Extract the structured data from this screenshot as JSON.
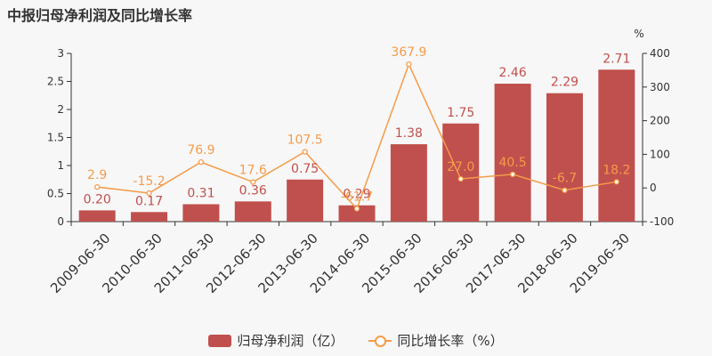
{
  "title": "中报归母净利润及同比增长率",
  "chart_data": {
    "type": "bar",
    "categories": [
      "2009-06-30",
      "2010-06-30",
      "2011-06-30",
      "2012-06-30",
      "2013-06-30",
      "2014-06-30",
      "2015-06-30",
      "2016-06-30",
      "2017-06-30",
      "2018-06-30",
      "2019-06-30"
    ],
    "series": [
      {
        "name": "归母净利润（亿）",
        "type": "bar",
        "axis": "left",
        "color": "#c0504d",
        "values": [
          0.2,
          0.17,
          0.31,
          0.36,
          0.75,
          0.29,
          1.38,
          1.75,
          2.46,
          2.29,
          2.71
        ],
        "labels": [
          "0.20",
          "0.17",
          "0.31",
          "0.36",
          "0.75",
          "0.29",
          "1.38",
          "1.75",
          "2.46",
          "2.29",
          "2.71"
        ]
      },
      {
        "name": "同比增长率（%）",
        "type": "line",
        "axis": "right",
        "color": "#f39c4a",
        "values": [
          2.9,
          -15.2,
          76.9,
          17.6,
          107.5,
          -61.7,
          367.9,
          27.0,
          40.5,
          -6.7,
          18.2
        ],
        "labels": [
          "2.9",
          "-15.2",
          "76.9",
          "17.6",
          "107.5",
          "-61.7",
          "367.9",
          "27.0",
          "40.5",
          "-6.7",
          "18.2"
        ]
      }
    ],
    "y_left": {
      "ylim": [
        0,
        3
      ],
      "ticks": [
        "0",
        "0.5",
        "1",
        "1.5",
        "2",
        "2.5",
        "3"
      ]
    },
    "y_right": {
      "ylim": [
        -100,
        400
      ],
      "ticks": [
        "-100",
        "0",
        "100",
        "200",
        "300",
        "400"
      ],
      "unit": "%"
    },
    "legend_position": "bottom",
    "grid": false
  },
  "legend": {
    "bar_label": "归母净利润（亿）",
    "line_label": "同比增长率（%）"
  }
}
